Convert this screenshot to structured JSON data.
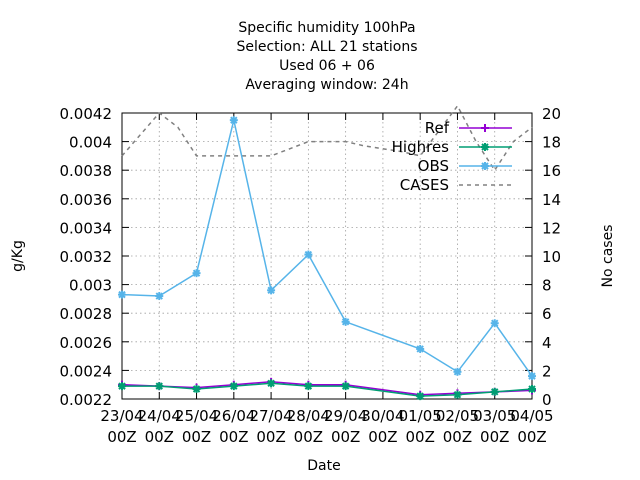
{
  "chart_data": {
    "type": "line",
    "title_lines": [
      "Specific humidity 100hPa",
      "Selection: ALL      21 stations",
      "Used  06 + 06",
      "Averaging window: 24h"
    ],
    "xlabel": "Date",
    "ylabel": "g/Kg",
    "y2label": "No cases",
    "x_ticks": [
      [
        "23/04",
        "00Z"
      ],
      [
        "24/04",
        "00Z"
      ],
      [
        "25/04",
        "00Z"
      ],
      [
        "26/04",
        "00Z"
      ],
      [
        "27/04",
        "00Z"
      ],
      [
        "28/04",
        "00Z"
      ],
      [
        "29/04",
        "00Z"
      ],
      [
        "30/04",
        "00Z"
      ],
      [
        "01/05",
        "00Z"
      ],
      [
        "02/05",
        "00Z"
      ],
      [
        "03/05",
        "00Z"
      ],
      [
        "04/05",
        "00Z"
      ]
    ],
    "xlim": [
      0,
      11
    ],
    "ylim": [
      0.0022,
      0.0042
    ],
    "y_ticks": [
      "0.0022",
      "0.0024",
      "0.0026",
      "0.0028",
      "0.003",
      "0.0032",
      "0.0034",
      "0.0036",
      "0.0038",
      "0.004",
      "0.0042"
    ],
    "y2lim": [
      0,
      20
    ],
    "y2_ticks": [
      "0",
      "2",
      "4",
      "6",
      "8",
      "10",
      "12",
      "14",
      "16",
      "18",
      "20"
    ],
    "grid": true,
    "legend_position": "top-right",
    "series": [
      {
        "name": "Ref",
        "color": "#9400d3",
        "marker": "plus",
        "axis": "y",
        "x": [
          0,
          1,
          2,
          3,
          4,
          5,
          6,
          8,
          9,
          10,
          11
        ],
        "y": [
          0.0023,
          0.00229,
          0.00228,
          0.0023,
          0.00232,
          0.0023,
          0.0023,
          0.00223,
          0.00224,
          0.00225,
          0.00226
        ]
      },
      {
        "name": "Highres",
        "color": "#009e73",
        "marker": "star",
        "axis": "y",
        "x": [
          0,
          1,
          2,
          3,
          4,
          5,
          6,
          8,
          9,
          10,
          11
        ],
        "y": [
          0.00229,
          0.00229,
          0.00227,
          0.00229,
          0.00231,
          0.00229,
          0.00229,
          0.00222,
          0.00223,
          0.00225,
          0.00227
        ]
      },
      {
        "name": "OBS",
        "color": "#56b4e9",
        "marker": "star",
        "axis": "y",
        "x": [
          0,
          1,
          2,
          3,
          4,
          5,
          6,
          8,
          9,
          10,
          11
        ],
        "y": [
          0.00293,
          0.00292,
          0.00308,
          0.00415,
          0.00296,
          0.00321,
          0.00274,
          0.00255,
          0.00239,
          0.00273,
          0.00236
        ]
      },
      {
        "name": "CASES",
        "color": "#808080",
        "dash": true,
        "axis": "y2",
        "x": [
          0,
          0.5,
          1,
          1.5,
          2,
          3,
          4,
          4.5,
          5,
          6,
          6.5,
          7.5,
          8,
          9,
          9.5,
          10,
          10.5,
          11
        ],
        "y": [
          17,
          18.5,
          20,
          19,
          17,
          17,
          17,
          17.5,
          18,
          18,
          17.7,
          17.3,
          17,
          20.5,
          18,
          16,
          18,
          19
        ]
      }
    ]
  }
}
